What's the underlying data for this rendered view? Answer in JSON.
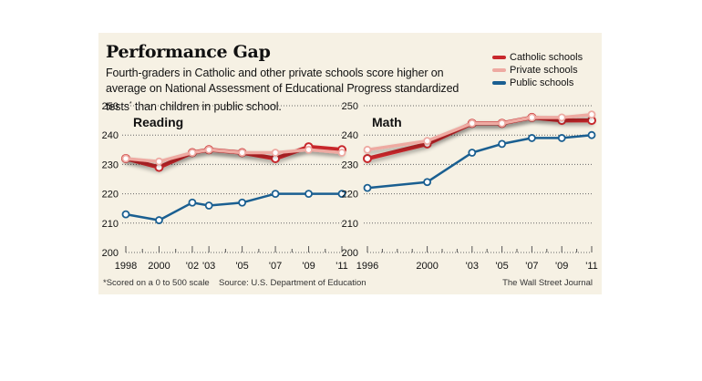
{
  "header": {
    "title": "Performance Gap",
    "subtitle_part1": "Fourth-graders in Catholic and other private schools score higher on average on National Assessment of Educational Progress standardized tests",
    "subtitle_mark": "*",
    "subtitle_part2": " than children in public school."
  },
  "legend": [
    {
      "label": "Catholic schools",
      "color": "#c8282c"
    },
    {
      "label": "Private schools",
      "color": "#eeaaa2"
    },
    {
      "label": "Public schools",
      "color": "#1a5f91"
    }
  ],
  "footer": {
    "footnote": "*Scored on a 0 to 500 scale",
    "source": "Source: U.S. Department of Education",
    "credit": "The Wall Street Journal"
  },
  "chart_data": [
    {
      "type": "line",
      "title": "Reading",
      "xlabel": "",
      "ylabel": "",
      "ylim": [
        200,
        250
      ],
      "yticks": [
        200,
        210,
        220,
        230,
        240,
        250
      ],
      "grid": true,
      "x": [
        1998,
        2000,
        2002,
        2003,
        2005,
        2007,
        2009,
        2011
      ],
      "xlim": [
        1998,
        2011
      ],
      "xticks": [
        1998,
        2000,
        2002,
        2003,
        2005,
        2007,
        2009,
        2011
      ],
      "xtick_labels": [
        "1998",
        "2000",
        "'02",
        "'03",
        "'05",
        "'07",
        "'09",
        "'11"
      ],
      "series": [
        {
          "name": "Private schools",
          "color": "#eeaaa2",
          "values": [
            232,
            231,
            234,
            235,
            234,
            234,
            235,
            234
          ]
        },
        {
          "name": "Catholic schools",
          "color": "#c8282c",
          "values": [
            232,
            229,
            234,
            235,
            234,
            232,
            236,
            235
          ]
        },
        {
          "name": "Public schools",
          "color": "#1a5f91",
          "values": [
            213,
            211,
            217,
            216,
            217,
            220,
            220,
            220
          ]
        }
      ]
    },
    {
      "type": "line",
      "title": "Math",
      "xlabel": "",
      "ylabel": "",
      "ylim": [
        200,
        250
      ],
      "yticks": [
        200,
        210,
        220,
        230,
        240,
        250
      ],
      "grid": true,
      "x": [
        1996,
        2000,
        2003,
        2005,
        2007,
        2009,
        2011
      ],
      "xlim": [
        1996,
        2011
      ],
      "xticks": [
        1996,
        2000,
        2003,
        2005,
        2007,
        2009,
        2011
      ],
      "xtick_labels": [
        "1996",
        "2000",
        "'03",
        "'05",
        "'07",
        "'09",
        "'11"
      ],
      "series": [
        {
          "name": "Private schools",
          "color": "#eeaaa2",
          "values": [
            235,
            238,
            244,
            244,
            246,
            246,
            247
          ]
        },
        {
          "name": "Catholic schools",
          "color": "#c8282c",
          "values": [
            232,
            237,
            244,
            244,
            246,
            245,
            245
          ]
        },
        {
          "name": "Public schools",
          "color": "#1a5f91",
          "values": [
            222,
            224,
            234,
            237,
            239,
            239,
            240
          ]
        }
      ]
    }
  ]
}
